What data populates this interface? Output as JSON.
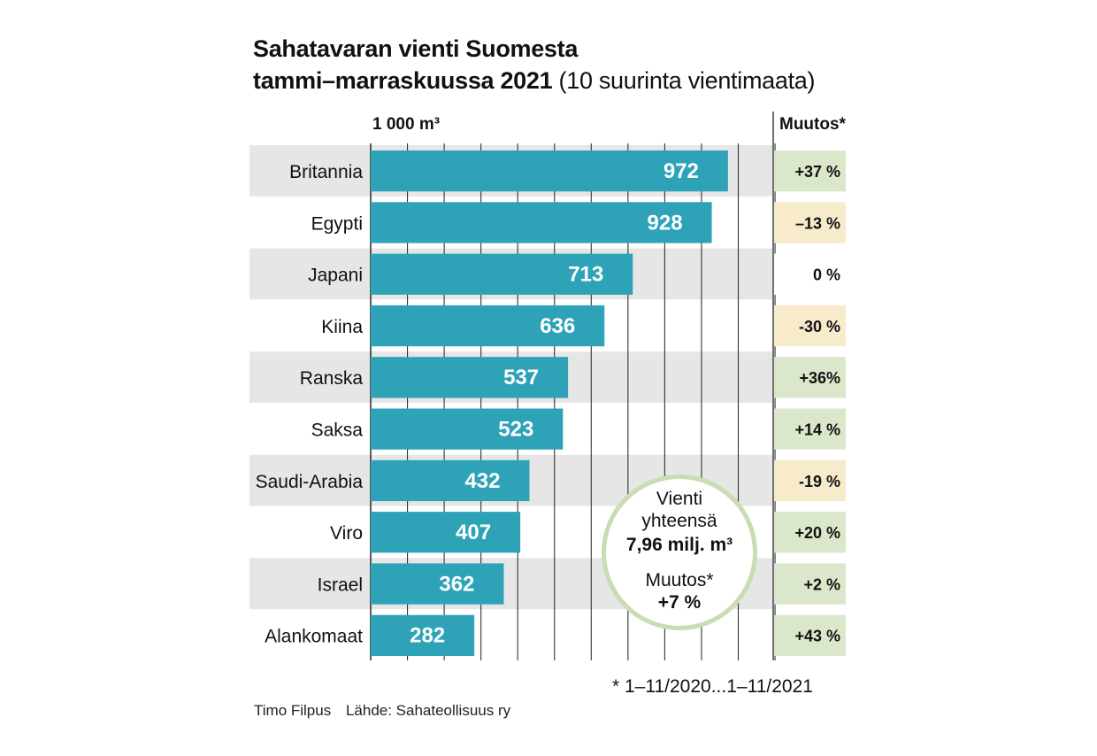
{
  "chart_data": {
    "type": "bar",
    "orientation": "horizontal",
    "title": "Sahatavaran vienti Suomesta",
    "title_line2": "tammi–marraskuussa 2021",
    "subtitle": "(10 suurinta vientimaata)",
    "unit_label": "1 000 m³",
    "change_header": "Muutos*",
    "categories": [
      "Britannia",
      "Egypti",
      "Japani",
      "Kiina",
      "Ranska",
      "Saksa",
      "Saudi-Arabia",
      "Viro",
      "Israel",
      "Alankomaat"
    ],
    "values": [
      972,
      928,
      713,
      636,
      537,
      523,
      432,
      407,
      362,
      282
    ],
    "value_labels": [
      "972",
      "928",
      "713",
      "636",
      "537",
      "523",
      "432",
      "407",
      "362",
      "282"
    ],
    "changes": [
      "+37 %",
      "–13 %",
      "0 %",
      "-30 %",
      "+36%",
      "+14 %",
      "-19 %",
      "+20 %",
      "+2 %",
      "+43 %"
    ],
    "change_direction": [
      "up",
      "down",
      "zero",
      "down",
      "up",
      "up",
      "down",
      "up",
      "up",
      "up"
    ],
    "xlim": [
      0,
      1100
    ],
    "grid_step": 100,
    "grid": true,
    "colors": {
      "bar": "#2ea3b8",
      "row_band": "#e6e6e6",
      "grid": "#333333",
      "increase": "#dbe7cb",
      "decrease": "#f8ebcc",
      "zero": "#ffffff",
      "circle_border": "#c9dcb2"
    },
    "summary": {
      "line1": "Vienti",
      "line2": "yhteensä",
      "value": "7,96 milj. m³",
      "change_label": "Muutos*",
      "change_value": "+7 %"
    },
    "footnote": "* 1–11/2020...1–11/2021"
  },
  "credit": {
    "author": "Timo Filpus",
    "source": "Lähde: Sahateollisuus ry"
  }
}
